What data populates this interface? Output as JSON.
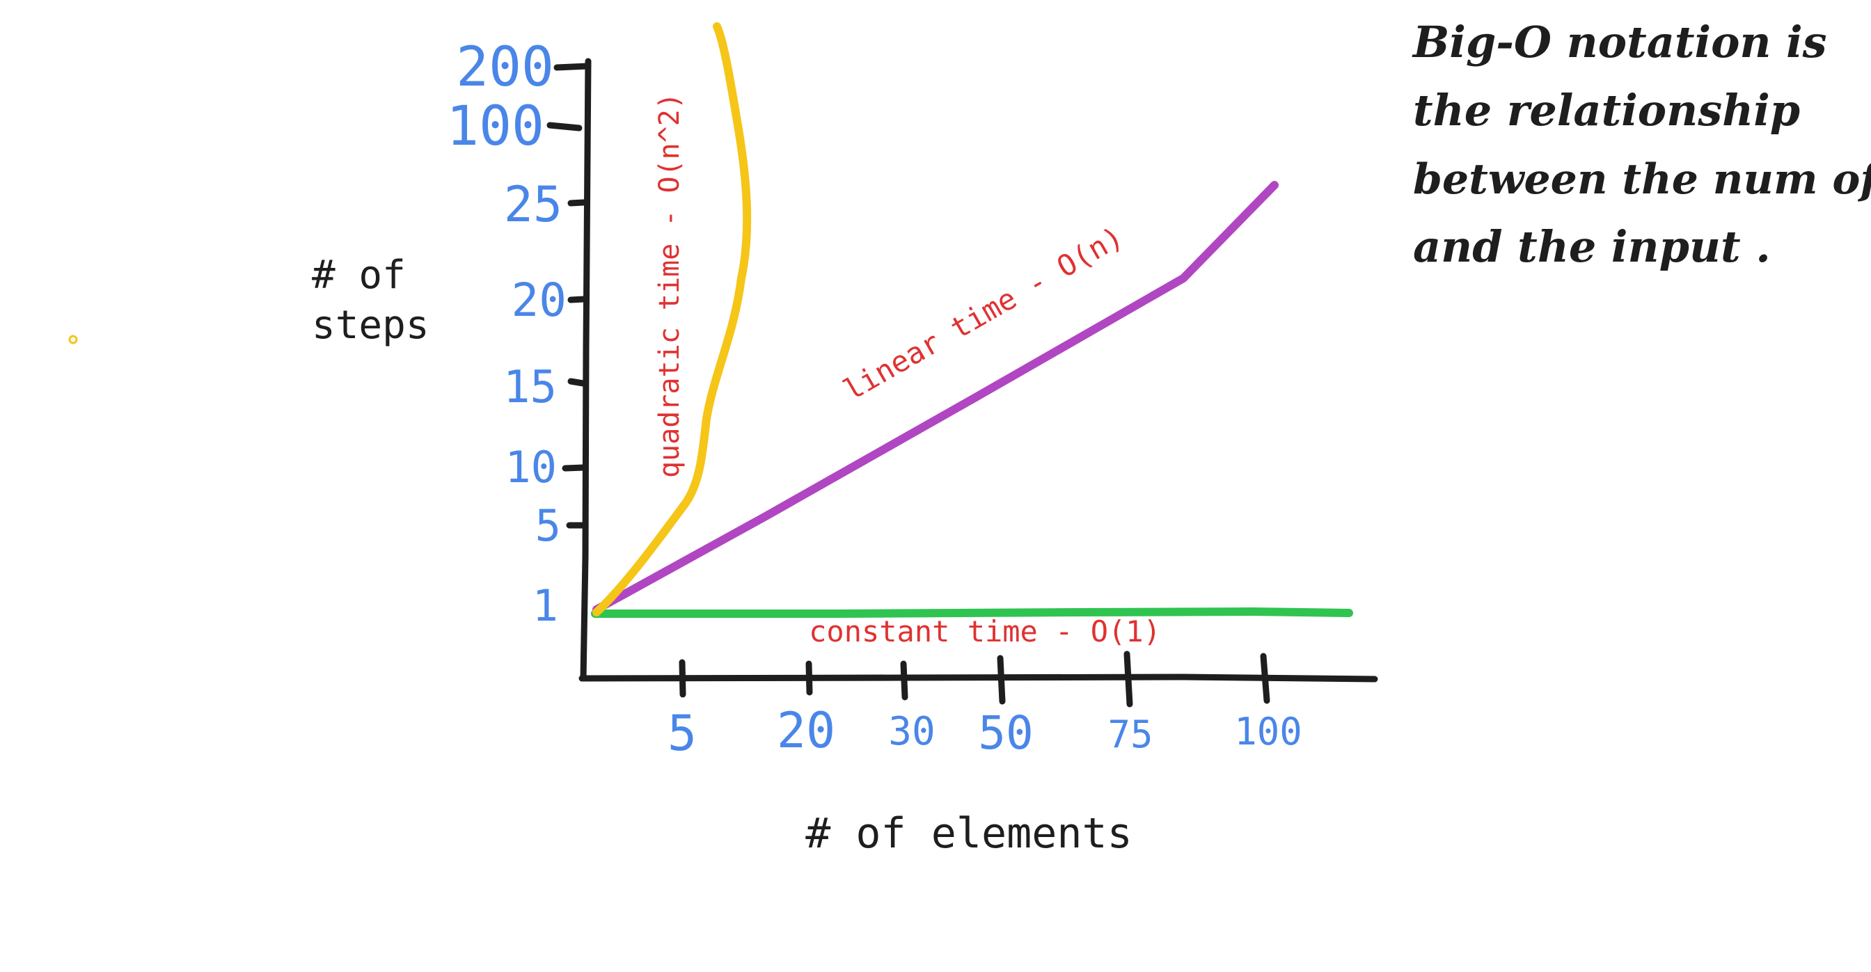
{
  "chart_data": {
    "type": "line",
    "xlabel": "# of elements",
    "ylabel": [
      "# of",
      "steps"
    ],
    "x_ticks": [
      "5",
      "20",
      "30",
      "50",
      "75",
      "100"
    ],
    "y_ticks": [
      "1",
      "5",
      "10",
      "15",
      "20",
      "25",
      "100",
      "200"
    ],
    "series": [
      {
        "name": "quadratic time - O(n^2)",
        "color": "#f5c518",
        "x": [
          0,
          5,
          10
        ],
        "y": [
          1,
          25,
          200
        ]
      },
      {
        "name": "linear time - O(n)",
        "color": "#b146c2",
        "x": [
          0,
          100
        ],
        "y": [
          1,
          26
        ]
      },
      {
        "name": "constant time - O(1)",
        "color": "#2fc450",
        "x": [
          0,
          110
        ],
        "y": [
          1,
          1
        ]
      }
    ],
    "grid": false,
    "legend": "none"
  },
  "note": {
    "lines": [
      "Big-O notation is",
      "the relationship",
      "between the num of steps",
      "and the input ."
    ]
  },
  "colors": {
    "axis": "#1e1e1e",
    "tick_label": "#4a86e8",
    "curve_label": "#e03131",
    "stray_dot": "#f5c518"
  }
}
